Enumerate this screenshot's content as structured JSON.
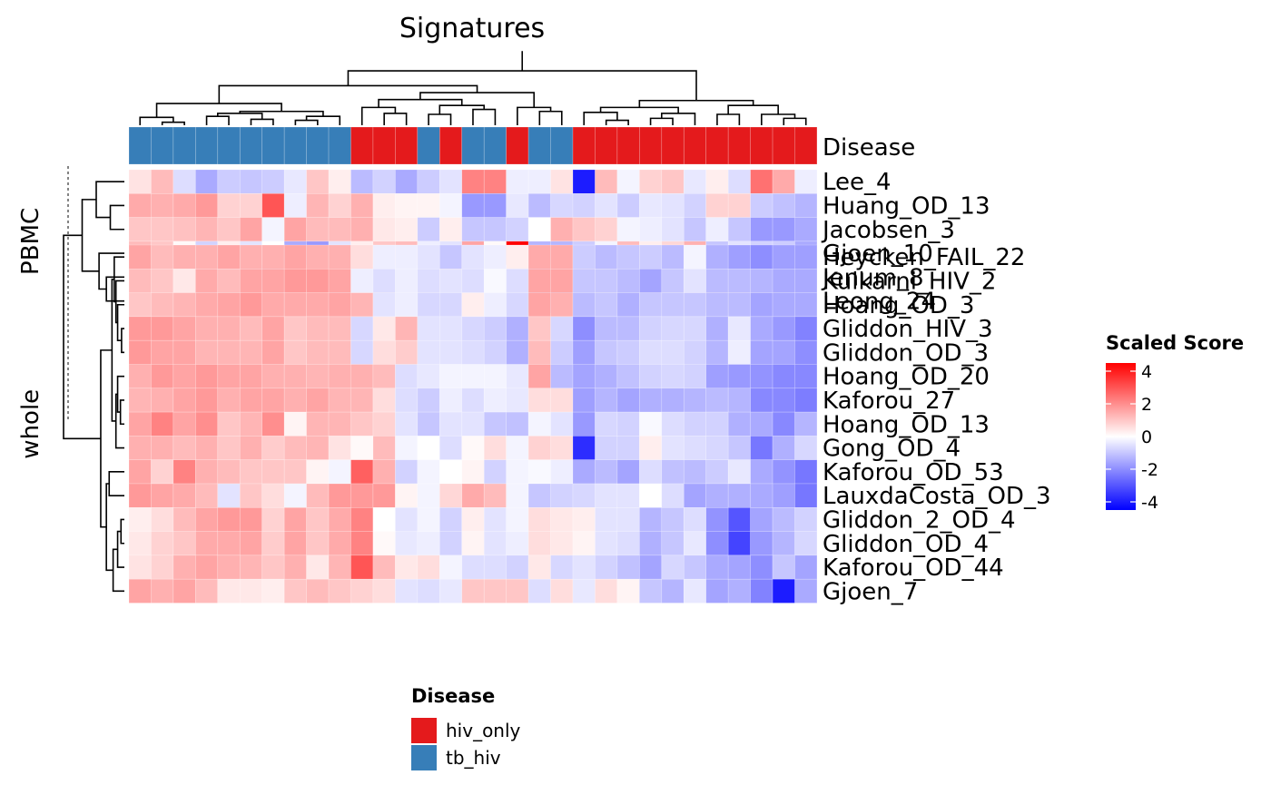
{
  "chart_data": {
    "type": "heatmap",
    "title": "Signatures",
    "annotation_label": "Disease",
    "row_split_labels": [
      "PBMC",
      "whole"
    ],
    "row_labels": [
      "Lee_4",
      "Huang_OD_13",
      "Jacobsen_3",
      "Gjoen_10",
      "Jenum_8",
      "Leong_24",
      "Heycken_FAIL_22",
      "Kulkarni_HIV_2",
      "Hoang_OD_3",
      "Gliddon_HIV_3",
      "Gliddon_OD_3",
      "Hoang_OD_20",
      "Kaforou_27",
      "Hoang_OD_13",
      "Gong_OD_4",
      "Kaforou_OD_53",
      "LauxdaCosta_OD_3",
      "Gliddon_2_OD_4",
      "Gliddon_OD_4",
      "Kaforou_OD_44",
      "Gjoen_7"
    ],
    "row_groups": [
      0,
      0,
      0,
      0,
      0,
      0,
      1,
      1,
      1,
      1,
      1,
      1,
      1,
      1,
      1,
      1,
      1,
      1,
      1,
      1,
      1
    ],
    "column_disease": [
      "tb_hiv",
      "tb_hiv",
      "tb_hiv",
      "tb_hiv",
      "tb_hiv",
      "tb_hiv",
      "tb_hiv",
      "tb_hiv",
      "tb_hiv",
      "tb_hiv",
      "hiv_only",
      "hiv_only",
      "hiv_only",
      "tb_hiv",
      "hiv_only",
      "tb_hiv",
      "tb_hiv",
      "hiv_only",
      "tb_hiv",
      "tb_hiv",
      "hiv_only",
      "hiv_only",
      "hiv_only",
      "hiv_only",
      "hiv_only",
      "hiv_only",
      "hiv_only",
      "hiv_only",
      "hiv_only",
      "hiv_only",
      "hiv_only"
    ],
    "values": [
      [
        0.5,
        1.2,
        -0.6,
        -1.5,
        -0.9,
        -1.0,
        -0.9,
        -0.4,
        1.0,
        0.3,
        -1.2,
        -0.8,
        -1.5,
        -0.9,
        -0.5,
        2.2,
        2.2,
        -0.3,
        -0.3,
        0.5,
        -4.0,
        1.2,
        -0.2,
        0.8,
        1.0,
        -0.4,
        0.3,
        -0.6,
        2.5,
        1.5,
        -0.3
      ],
      [
        1.5,
        1.4,
        1.5,
        1.8,
        0.8,
        0.8,
        3.0,
        -0.3,
        1.3,
        0.8,
        1.4,
        0.3,
        0.2,
        0.2,
        -0.2,
        -1.8,
        -1.8,
        -0.4,
        -1.2,
        -0.7,
        -0.8,
        -0.5,
        -0.9,
        -0.4,
        -0.5,
        -0.8,
        0.8,
        0.8,
        -0.9,
        -1.1,
        -1.3
      ],
      [
        1.0,
        1.0,
        1.1,
        1.3,
        1.0,
        1.6,
        -0.2,
        1.6,
        1.2,
        1.2,
        1.4,
        0.4,
        0.3,
        -0.9,
        0.3,
        -1.0,
        -1.0,
        -0.8,
        0.0,
        1.4,
        1.0,
        0.8,
        -0.2,
        -0.3,
        -0.5,
        -1.0,
        -0.3,
        -1.0,
        -1.8,
        -1.8,
        -1.5
      ],
      [
        1.2,
        1.0,
        0.1,
        -0.8,
        0.3,
        -0.5,
        0.0,
        -1.5,
        -1.8,
        -0.5,
        0.3,
        1.0,
        1.2,
        -0.3,
        -0.5,
        1.6,
        0.1,
        4.5,
        -1.3,
        -1.3,
        -0.9,
        -0.2,
        1.2,
        0.3,
        0.7,
        1.4,
        -1.0,
        -0.5,
        -0.8,
        -0.9,
        -1.5
      ],
      [
        1.2,
        1.8,
        1.6,
        -0.5,
        -0.5,
        -0.9,
        -1.5,
        1.2,
        1.0,
        1.0,
        -1.0,
        -0.1,
        -0.5,
        0.1,
        1.6,
        -0.7,
        -0.4,
        -0.3,
        -2.5,
        -0.7,
        1.5,
        0.8,
        -0.6,
        -0.4,
        -0.4,
        -0.2,
        -0.6,
        -0.7,
        -0.8,
        -1.2,
        -1.8
      ],
      [
        1.6,
        0.6,
        1.4,
        -1.2,
        -0.9,
        -0.5,
        -1.0,
        -0.7,
        0.6,
        -1.5,
        -0.5,
        1.0,
        -0.3,
        0.5,
        -0.5,
        -0.4,
        -0.3,
        -0.5,
        -2.8,
        -3.5,
        -1.0,
        1.0,
        0.3,
        0.8,
        1.2,
        0.5,
        1.5,
        1.2,
        0.6,
        0.8,
        -0.3
      ],
      [
        1.6,
        1.2,
        1.4,
        1.4,
        1.6,
        1.4,
        1.4,
        1.6,
        1.4,
        1.4,
        0.6,
        -0.3,
        -0.3,
        -0.5,
        -1.0,
        -0.5,
        -0.3,
        0.3,
        1.5,
        1.5,
        -0.9,
        -1.2,
        -1.0,
        -0.9,
        -1.2,
        -0.2,
        -1.4,
        -1.7,
        -2.0,
        -1.7,
        -1.7
      ],
      [
        1.2,
        1.0,
        0.4,
        1.5,
        1.2,
        1.6,
        1.6,
        1.8,
        1.8,
        1.6,
        -0.3,
        -0.6,
        -0.3,
        -0.6,
        -0.5,
        -0.6,
        -0.1,
        -0.6,
        1.6,
        1.6,
        -1.0,
        -1.0,
        -1.2,
        -1.6,
        -1.0,
        -0.5,
        -1.2,
        -1.2,
        -1.3,
        -1.5,
        -1.5
      ],
      [
        1.0,
        1.2,
        1.3,
        1.5,
        1.6,
        1.8,
        1.5,
        1.5,
        1.5,
        1.6,
        1.3,
        -0.5,
        -0.3,
        -0.7,
        -0.7,
        0.3,
        -0.3,
        -0.7,
        1.6,
        1.4,
        -1.2,
        -1.0,
        -1.4,
        -1.0,
        -1.0,
        -1.0,
        -1.2,
        -1.2,
        -1.6,
        -1.5,
        -1.5
      ],
      [
        1.8,
        1.8,
        1.6,
        1.4,
        1.4,
        1.2,
        1.6,
        1.0,
        1.2,
        1.2,
        -0.7,
        0.4,
        1.3,
        -0.5,
        -0.5,
        -0.7,
        -0.9,
        -1.4,
        1.0,
        -0.7,
        -2.0,
        -1.2,
        -1.2,
        -0.8,
        -0.7,
        -0.7,
        -1.4,
        -0.4,
        -1.5,
        -1.8,
        -2.2
      ],
      [
        1.8,
        1.6,
        1.6,
        1.3,
        1.3,
        1.3,
        1.6,
        1.0,
        1.2,
        1.2,
        -0.7,
        0.6,
        0.9,
        -0.5,
        -0.5,
        -0.6,
        -0.8,
        -1.4,
        1.2,
        -0.9,
        -1.7,
        -1.0,
        -0.9,
        -0.6,
        -0.6,
        -0.8,
        -1.3,
        -0.3,
        -1.6,
        -1.6,
        -2.0
      ],
      [
        1.4,
        1.8,
        1.6,
        1.8,
        1.6,
        1.6,
        1.4,
        1.4,
        1.3,
        1.4,
        1.4,
        1.2,
        -0.6,
        -0.4,
        -0.2,
        -0.2,
        -0.2,
        -0.4,
        1.6,
        -1.2,
        -1.6,
        -1.4,
        -1.1,
        -0.8,
        -0.7,
        -0.8,
        -1.7,
        -1.8,
        -1.9,
        -2.1,
        -2.1
      ],
      [
        1.3,
        1.4,
        1.6,
        1.8,
        1.4,
        1.6,
        1.6,
        1.4,
        1.6,
        1.3,
        1.3,
        0.6,
        -0.6,
        -0.9,
        -0.3,
        -0.6,
        -0.3,
        -0.4,
        0.6,
        0.6,
        -1.7,
        -1.3,
        -1.6,
        -1.4,
        -1.4,
        -1.3,
        -1.2,
        -1.3,
        -2.1,
        -2.1,
        -2.3
      ],
      [
        1.6,
        2.2,
        1.6,
        2.0,
        1.0,
        1.3,
        2.0,
        0.2,
        1.3,
        1.3,
        1.0,
        0.8,
        -0.5,
        -1.0,
        -0.5,
        -0.5,
        -1.0,
        -1.1,
        -0.2,
        -0.5,
        -1.8,
        -0.7,
        -0.8,
        -0.1,
        -0.6,
        -0.8,
        -0.8,
        -1.4,
        -1.5,
        -2.1,
        -1.3
      ],
      [
        1.4,
        1.4,
        1.2,
        1.4,
        1.0,
        1.4,
        0.9,
        1.2,
        1.3,
        0.5,
        0.1,
        1.2,
        -0.2,
        0.0,
        -0.6,
        0.1,
        0.6,
        -0.2,
        0.8,
        0.6,
        -3.7,
        -0.8,
        -0.8,
        0.3,
        -0.5,
        -0.6,
        -0.7,
        -1.0,
        -2.4,
        -1.4,
        -0.7
      ],
      [
        1.6,
        0.8,
        2.2,
        1.4,
        1.2,
        1.0,
        1.0,
        1.0,
        0.2,
        -0.2,
        2.8,
        1.4,
        -0.8,
        -0.2,
        0.0,
        0.2,
        -0.8,
        -0.2,
        -0.1,
        -0.3,
        -1.5,
        -1.2,
        -1.6,
        -0.6,
        -1.1,
        -1.2,
        -0.9,
        -0.4,
        -1.5,
        -1.9,
        -2.4
      ],
      [
        1.8,
        1.6,
        1.5,
        1.2,
        -0.5,
        1.0,
        0.6,
        -0.2,
        1.2,
        1.8,
        1.8,
        1.8,
        0.2,
        -0.2,
        0.7,
        1.5,
        1.2,
        -0.2,
        -1.0,
        -0.8,
        -0.7,
        -0.5,
        -0.5,
        0.0,
        -0.6,
        -1.6,
        -1.4,
        -1.4,
        -1.5,
        -1.7,
        -2.4
      ],
      [
        0.3,
        0.6,
        1.2,
        1.6,
        1.8,
        1.8,
        0.8,
        1.6,
        1.0,
        1.5,
        2.2,
        0.0,
        -0.5,
        -0.2,
        -0.8,
        0.3,
        -0.5,
        -0.2,
        0.6,
        0.4,
        0.3,
        -0.5,
        -0.5,
        -1.3,
        -1.0,
        -0.6,
        -1.9,
        -3.0,
        -1.6,
        -1.2,
        -0.8
      ],
      [
        0.4,
        0.8,
        1.0,
        1.5,
        1.5,
        1.6,
        0.9,
        1.6,
        1.0,
        1.5,
        2.2,
        0.1,
        -0.4,
        -0.3,
        -0.8,
        0.2,
        -0.5,
        -0.3,
        0.6,
        0.4,
        0.2,
        -0.5,
        -0.6,
        -1.4,
        -1.0,
        -0.4,
        -2.0,
        -3.3,
        -1.8,
        -1.3,
        -0.7
      ],
      [
        0.5,
        0.8,
        1.4,
        1.6,
        1.4,
        1.3,
        1.0,
        1.4,
        0.4,
        1.3,
        3.0,
        1.2,
        0.4,
        0.6,
        -0.2,
        -0.6,
        -0.6,
        -0.8,
        0.4,
        -0.7,
        -0.5,
        -0.8,
        -1.1,
        -1.6,
        -0.7,
        -1.0,
        -1.5,
        -1.6,
        -2.0,
        -1.0,
        -1.6
      ],
      [
        1.6,
        1.4,
        1.6,
        1.2,
        0.4,
        0.4,
        0.3,
        1.0,
        1.2,
        1.0,
        0.8,
        0.6,
        -0.5,
        -0.6,
        -0.4,
        1.0,
        1.0,
        1.0,
        -0.6,
        0.6,
        -0.4,
        0.6,
        0.2,
        -1.0,
        -1.3,
        -0.4,
        -1.6,
        -1.4,
        -2.2,
        -4.0,
        -1.5
      ]
    ],
    "row_dendrogram": {
      "nodes": [
        {
          "l": [
            "r",
            1
          ],
          "r": [
            "r",
            2
          ],
          "h": 0.25
        },
        {
          "l": [
            "r",
            0
          ],
          "r": [
            "n",
            0
          ],
          "h": 0.5
        },
        {
          "l": [
            "r",
            4
          ],
          "r": [
            "r",
            5
          ],
          "h": 0.32
        },
        {
          "l": [
            "r",
            3
          ],
          "r": [
            "n",
            2
          ],
          "h": 0.45
        },
        {
          "l": [
            "r",
            9
          ],
          "r": [
            "r",
            10
          ],
          "h": 0.05
        },
        {
          "l": [
            "r",
            8
          ],
          "r": [
            "n",
            4
          ],
          "h": 0.12
        },
        {
          "l": [
            "r",
            7
          ],
          "r": [
            "n",
            5
          ],
          "h": 0.15
        },
        {
          "l": [
            "r",
            6
          ],
          "r": [
            "n",
            6
          ],
          "h": 0.18
        },
        {
          "l": [
            "r",
            12
          ],
          "r": [
            "r",
            13
          ],
          "h": 0.07
        },
        {
          "l": [
            "r",
            11
          ],
          "r": [
            "n",
            8
          ],
          "h": 0.12
        },
        {
          "l": [
            "r",
            14
          ],
          "r": [
            "n",
            9
          ],
          "h": 0.15
        },
        {
          "l": [
            "n",
            7
          ],
          "r": [
            "n",
            10
          ],
          "h": 0.22
        },
        {
          "l": [
            "r",
            15
          ],
          "r": [
            "r",
            16
          ],
          "h": 0.27
        },
        {
          "l": [
            "r",
            17
          ],
          "r": [
            "r",
            18
          ],
          "h": 0.06
        },
        {
          "l": [
            "r",
            19
          ],
          "r": [
            "n",
            13
          ],
          "h": 0.12
        },
        {
          "l": [
            "r",
            20
          ],
          "r": [
            "n",
            14
          ],
          "h": 0.2
        },
        {
          "l": [
            "n",
            12
          ],
          "r": [
            "n",
            15
          ],
          "h": 0.32
        },
        {
          "l": [
            "n",
            11
          ],
          "r": [
            "n",
            16
          ],
          "h": 0.42
        }
      ],
      "split_nodes": [
        1,
        3,
        17
      ],
      "pbmc_join": {
        "l": 1,
        "r": 3,
        "h": 0.75
      },
      "top_join": {
        "l": 18,
        "r": 17,
        "h": 1.0
      }
    },
    "column_dendrogram": {
      "nodes": [
        {
          "l": [
            "c",
            1
          ],
          "r": [
            "c",
            2
          ],
          "h": 0.03
        },
        {
          "l": [
            "c",
            0
          ],
          "r": [
            "n",
            0
          ],
          "h": 0.08
        },
        {
          "l": [
            "c",
            3
          ],
          "r": [
            "c",
            4
          ],
          "h": 0.09
        },
        {
          "l": [
            "c",
            5
          ],
          "r": [
            "c",
            6
          ],
          "h": 0.06
        },
        {
          "l": [
            "n",
            2
          ],
          "r": [
            "n",
            3
          ],
          "h": 0.12
        },
        {
          "l": [
            "c",
            7
          ],
          "r": [
            "c",
            8
          ],
          "h": 0.05
        },
        {
          "l": [
            "c",
            9
          ],
          "r": [
            "n",
            5
          ],
          "h": 0.09
        },
        {
          "l": [
            "n",
            4
          ],
          "r": [
            "n",
            6
          ],
          "h": 0.14
        },
        {
          "l": [
            "n",
            1
          ],
          "r": [
            "n",
            7
          ],
          "h": 0.22
        },
        {
          "l": [
            "c",
            11
          ],
          "r": [
            "c",
            12
          ],
          "h": 0.12
        },
        {
          "l": [
            "c",
            10
          ],
          "r": [
            "n",
            9
          ],
          "h": 0.18
        },
        {
          "l": [
            "c",
            13
          ],
          "r": [
            "c",
            14
          ],
          "h": 0.11
        },
        {
          "l": [
            "c",
            15
          ],
          "r": [
            "c",
            16
          ],
          "h": 0.16
        },
        {
          "l": [
            "n",
            11
          ],
          "r": [
            "n",
            12
          ],
          "h": 0.2
        },
        {
          "l": [
            "n",
            10
          ],
          "r": [
            "n",
            13
          ],
          "h": 0.26
        },
        {
          "l": [
            "c",
            18
          ],
          "r": [
            "c",
            19
          ],
          "h": 0.14
        },
        {
          "l": [
            "c",
            17
          ],
          "r": [
            "n",
            15
          ],
          "h": 0.18
        },
        {
          "l": [
            "n",
            14
          ],
          "r": [
            "n",
            16
          ],
          "h": 0.33
        },
        {
          "l": [
            "n",
            8
          ],
          "r": [
            "n",
            17
          ],
          "h": 0.4
        },
        {
          "l": [
            "c",
            21
          ],
          "r": [
            "c",
            22
          ],
          "h": 0.05
        },
        {
          "l": [
            "c",
            20
          ],
          "r": [
            "n",
            19
          ],
          "h": 0.13
        },
        {
          "l": [
            "c",
            23
          ],
          "r": [
            "c",
            24
          ],
          "h": 0.07
        },
        {
          "l": [
            "c",
            25
          ],
          "r": [
            "n",
            21
          ],
          "h": 0.12
        },
        {
          "l": [
            "n",
            20
          ],
          "r": [
            "n",
            22
          ],
          "h": 0.18
        },
        {
          "l": [
            "c",
            26
          ],
          "r": [
            "c",
            27
          ],
          "h": 0.11
        },
        {
          "l": [
            "c",
            29
          ],
          "r": [
            "c",
            30
          ],
          "h": 0.07
        },
        {
          "l": [
            "c",
            28
          ],
          "r": [
            "n",
            25
          ],
          "h": 0.11
        },
        {
          "l": [
            "n",
            24
          ],
          "r": [
            "n",
            26
          ],
          "h": 0.2
        },
        {
          "l": [
            "n",
            23
          ],
          "r": [
            "n",
            27
          ],
          "h": 0.25
        },
        {
          "l": [
            "n",
            18
          ],
          "r": [
            "n",
            28
          ],
          "h": 0.55
        },
        {
          "l": [
            "n",
            29
          ],
          "r": [
            "n",
            29
          ],
          "h": 0.75
        }
      ]
    },
    "legend_disease": {
      "title": "Disease",
      "items": [
        {
          "label": "hiv_only",
          "color": "#E41A1C"
        },
        {
          "label": "tb_hiv",
          "color": "#377EB8"
        }
      ]
    },
    "legend_color": {
      "title": "Scaled Score",
      "ticks": [
        4,
        2,
        0,
        -2,
        -4
      ],
      "range": [
        -4.5,
        4.5
      ],
      "low_color": "#0000FF",
      "mid_color": "#FFFFFF",
      "high_color": "#FF0000"
    }
  }
}
